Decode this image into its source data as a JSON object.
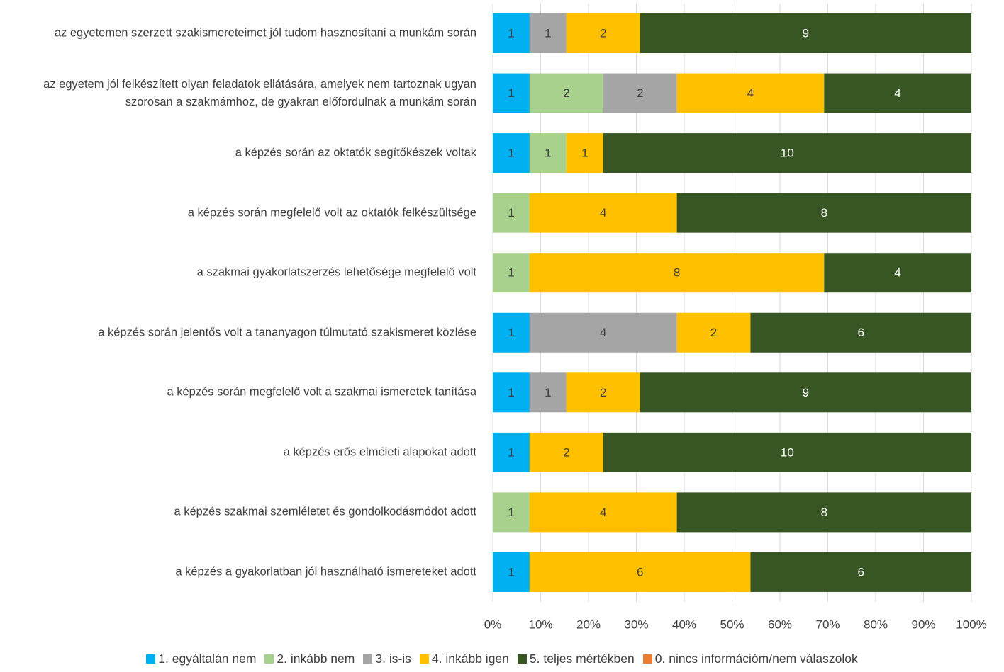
{
  "chart_data": {
    "type": "bar",
    "orientation": "horizontal",
    "stacked": true,
    "percent": true,
    "categories": [
      "az egyetemen szerzett szakismereteimet jól tudom hasznosítani a munkám során",
      "az egyetem jól felkészített olyan feladatok ellátására, amelyek nem tartoznak ugyan szorosan a szakmámhoz, de gyakran előfordulnak a munkám során",
      "a képzés során az oktatók segítőkészek voltak",
      "a képzés során megfelelő volt az oktatók felkészültsége",
      "a szakmai gyakorlatszerzés lehetősége megfelelő volt",
      "a képzés során jelentős volt a tananyagon túlmutató szakismeret közlése",
      "a képzés során megfelelő volt a szakmai ismeretek tanítása",
      "a képzés erős elméleti alapokat adott",
      "a képzés szakmai szemléletet és gondolkodásmódot adott",
      "a képzés a gyakorlatban jól használható ismereteket adott"
    ],
    "series": [
      {
        "name": "1. egyáltalán nem",
        "color": "#00b0f0",
        "label_color": "#404040",
        "values": [
          1,
          1,
          1,
          0,
          0,
          1,
          1,
          1,
          0,
          1
        ]
      },
      {
        "name": "2. inkább nem",
        "color": "#a9d18e",
        "label_color": "#404040",
        "values": [
          0,
          2,
          1,
          1,
          1,
          0,
          0,
          0,
          1,
          0
        ]
      },
      {
        "name": "3. is-is",
        "color": "#a5a5a5",
        "label_color": "#404040",
        "values": [
          1,
          2,
          0,
          0,
          0,
          4,
          1,
          0,
          0,
          0
        ]
      },
      {
        "name": "4. inkább igen",
        "color": "#ffc000",
        "label_color": "#404040",
        "values": [
          2,
          4,
          1,
          4,
          8,
          2,
          2,
          2,
          4,
          6
        ]
      },
      {
        "name": "5. teljes mértékben",
        "color": "#375623",
        "label_color": "#ffffff",
        "values": [
          9,
          4,
          10,
          8,
          4,
          6,
          9,
          10,
          8,
          6
        ]
      },
      {
        "name": "0. nincs információm/nem válaszolok",
        "color": "#ed7d31",
        "label_color": "#404040",
        "values": [
          0,
          0,
          0,
          0,
          0,
          0,
          0,
          0,
          0,
          0
        ]
      }
    ],
    "xlim": [
      0,
      100
    ],
    "xticks": [
      {
        "value": 0,
        "label": "0%"
      },
      {
        "value": 10,
        "label": "10%"
      },
      {
        "value": 20,
        "label": "20%"
      },
      {
        "value": 30,
        "label": "30%"
      },
      {
        "value": 40,
        "label": "40%"
      },
      {
        "value": 50,
        "label": "50%"
      },
      {
        "value": 60,
        "label": "60%"
      },
      {
        "value": 70,
        "label": "70%"
      },
      {
        "value": 80,
        "label": "80%"
      },
      {
        "value": 90,
        "label": "90%"
      },
      {
        "value": 100,
        "label": "100%"
      }
    ],
    "grid": true,
    "legend": "bottom"
  }
}
